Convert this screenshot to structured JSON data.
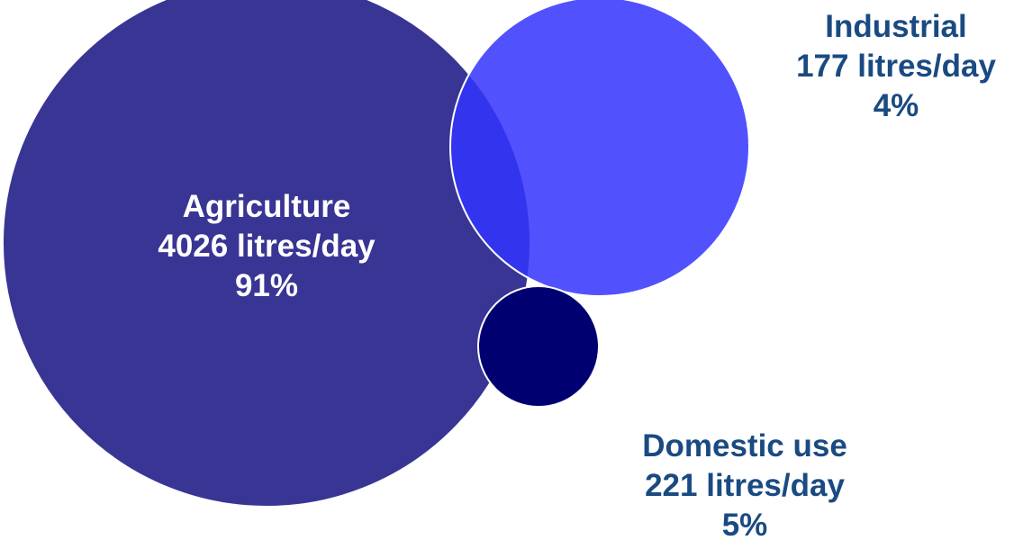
{
  "diagram": {
    "colors": {
      "agriculture": "#383594",
      "industrial": "#3234fd",
      "domestic": "#010070",
      "outline": "#ffffff",
      "text_on_dark": "#ffffff",
      "text_on_light": "#1a4a82"
    },
    "segments": [
      {
        "id": "agriculture",
        "name": "Agriculture",
        "amount": "4026 litres/day",
        "percent": "91%"
      },
      {
        "id": "industrial",
        "name": "Industrial",
        "amount": "177 litres/day",
        "percent": "4%"
      },
      {
        "id": "domestic",
        "name": "Domestic use",
        "amount": "221 litres/day",
        "percent": "5%"
      }
    ]
  }
}
